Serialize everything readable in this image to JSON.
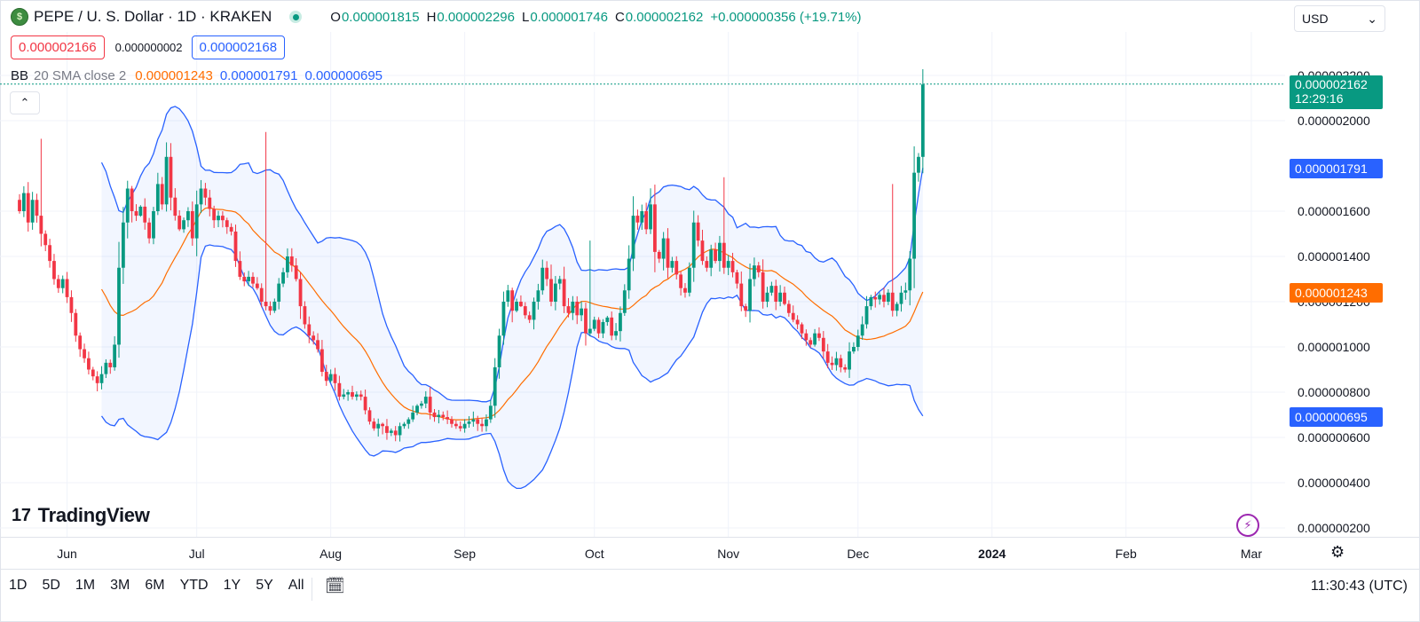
{
  "header": {
    "symbol_logo": "$",
    "symbol_title": "PEPE / U. S. Dollar · 1D · KRAKEN",
    "ohlc": {
      "o_key": "O",
      "o_val": "0.000001815",
      "h_key": "H",
      "h_val": "0.000002296",
      "l_key": "L",
      "l_val": "0.000001746",
      "c_key": "C",
      "c_val": "0.000002162",
      "change": "+0.000000356 (+19.71%)"
    },
    "sell_price": "0.000002166",
    "spread": "0.000000002",
    "buy_price": "0.000002168",
    "currency": "USD"
  },
  "indicator": {
    "name": "BB",
    "params": "20 SMA close 2",
    "basis": "0.000001243",
    "upper": "0.000001791",
    "lower": "0.000000695"
  },
  "price_labels": {
    "last": "0.000002162",
    "countdown": "12:29:16",
    "upper": "0.000001791",
    "basis": "0.000001243",
    "lower": "0.000000695"
  },
  "watermark": "TradingView",
  "bottom": {
    "ranges": [
      "1D",
      "5D",
      "1M",
      "3M",
      "6M",
      "YTD",
      "1Y",
      "5Y",
      "All"
    ],
    "time": "11:30:43 (UTC)"
  },
  "colors": {
    "up": "#089981",
    "down": "#f23645",
    "basis": "#ff6d00",
    "band": "#2962ff",
    "fill": "#2962ff"
  },
  "icons": [
    "pepe-logo-icon",
    "live-status-icon",
    "chevron-up-icon",
    "chevron-down-icon",
    "lightning-icon",
    "gear-icon",
    "date-range-icon"
  ],
  "chart_data": {
    "type": "candlestick",
    "title": "PEPE / U. S. Dollar · 1D · KRAKEN",
    "ylim": [
      1.5e-07,
      2.35e-06
    ],
    "y_ticks": [
      "0.000002200",
      "0.000002000",
      "0.000001600",
      "0.000001400",
      "0.000001200",
      "0.000001000",
      "0.000000800",
      "0.000000600",
      "0.000000400",
      "0.000000200"
    ],
    "y_tick_values": [
      2.2e-06,
      2e-06,
      1.6e-06,
      1.4e-06,
      1.2e-06,
      1e-06,
      8e-07,
      6e-07,
      4e-07,
      2e-07
    ],
    "x_ticks": [
      {
        "label": "Jun",
        "day": 11,
        "bold": false
      },
      {
        "label": "Jul",
        "day": 41,
        "bold": false
      },
      {
        "label": "Aug",
        "day": 72,
        "bold": false
      },
      {
        "label": "Sep",
        "day": 103,
        "bold": false
      },
      {
        "label": "Oct",
        "day": 133,
        "bold": false
      },
      {
        "label": "Nov",
        "day": 164,
        "bold": false
      },
      {
        "label": "Dec",
        "day": 194,
        "bold": false
      },
      {
        "label": "2024",
        "day": 225,
        "bold": true
      },
      {
        "label": "Feb",
        "day": 256,
        "bold": false
      },
      {
        "label": "Mar",
        "day": 285,
        "bold": false
      }
    ],
    "first_date": "2023-05-21",
    "close_start": 1.65e-06,
    "closes": [
      1.6,
      1.68,
      1.55,
      1.65,
      1.58,
      1.5,
      1.45,
      1.38,
      1.3,
      1.26,
      1.3,
      1.22,
      1.15,
      1.05,
      0.99,
      0.95,
      0.9,
      0.87,
      0.84,
      0.88,
      0.93,
      0.91,
      1.01,
      1.35,
      1.55,
      1.7,
      1.6,
      1.58,
      1.62,
      1.55,
      1.48,
      1.6,
      1.72,
      1.63,
      1.84,
      1.66,
      1.58,
      1.52,
      1.56,
      1.6,
      1.48,
      1.63,
      1.7,
      1.66,
      1.61,
      1.56,
      1.58,
      1.56,
      1.53,
      1.51,
      1.38,
      1.31,
      1.29,
      1.31,
      1.28,
      1.26,
      1.2,
      1.18,
      1.16,
      1.2,
      1.28,
      1.33,
      1.4,
      1.36,
      1.3,
      1.18,
      1.1,
      1.05,
      1.03,
      0.99,
      0.89,
      0.85,
      0.88,
      0.84,
      0.78,
      0.79,
      0.8,
      0.78,
      0.79,
      0.78,
      0.72,
      0.67,
      0.64,
      0.66,
      0.65,
      0.62,
      0.63,
      0.61,
      0.65,
      0.66,
      0.68,
      0.71,
      0.74,
      0.75,
      0.78,
      0.71,
      0.69,
      0.7,
      0.69,
      0.68,
      0.66,
      0.65,
      0.64,
      0.66,
      0.67,
      0.68,
      0.66,
      0.65,
      0.68,
      0.74,
      0.91,
      1.05,
      1.2,
      1.25,
      1.16,
      1.2,
      1.18,
      1.14,
      1.12,
      1.2,
      1.25,
      1.35,
      1.3,
      1.2,
      1.28,
      1.3,
      1.18,
      1.15,
      1.2,
      1.14,
      1.17,
      1.06,
      1.08,
      1.12,
      1.06,
      1.11,
      1.13,
      1.05,
      1.07,
      1.15,
      1.25,
      1.39,
      1.58,
      1.55,
      1.6,
      1.52,
      1.63,
      1.42,
      1.39,
      1.48,
      1.35,
      1.38,
      1.32,
      1.26,
      1.24,
      1.35,
      1.55,
      1.47,
      1.38,
      1.35,
      1.43,
      1.38,
      1.46,
      1.35,
      1.38,
      1.33,
      1.28,
      1.18,
      1.16,
      1.3,
      1.36,
      1.33,
      1.2,
      1.24,
      1.27,
      1.2,
      1.24,
      1.19,
      1.15,
      1.12,
      1.1,
      1.06,
      1.03,
      1.01,
      1.06,
      1.04,
      0.98,
      0.93,
      0.92,
      0.95,
      0.91,
      0.9,
      0.98,
      1.0,
      1.05,
      1.1,
      1.18,
      1.22,
      1.21,
      1.23,
      1.2,
      1.24,
      1.16,
      1.19,
      1.24,
      1.25,
      1.39,
      1.77,
      1.84,
      2.16
    ],
    "bollinger": {
      "name": "BB",
      "period": 20,
      "stddev": 2,
      "source": "close",
      "basis_last": 1.243e-06,
      "upper_last": 1.791e-06,
      "lower_last": 6.95e-07
    },
    "last_price": 2.162e-06
  }
}
